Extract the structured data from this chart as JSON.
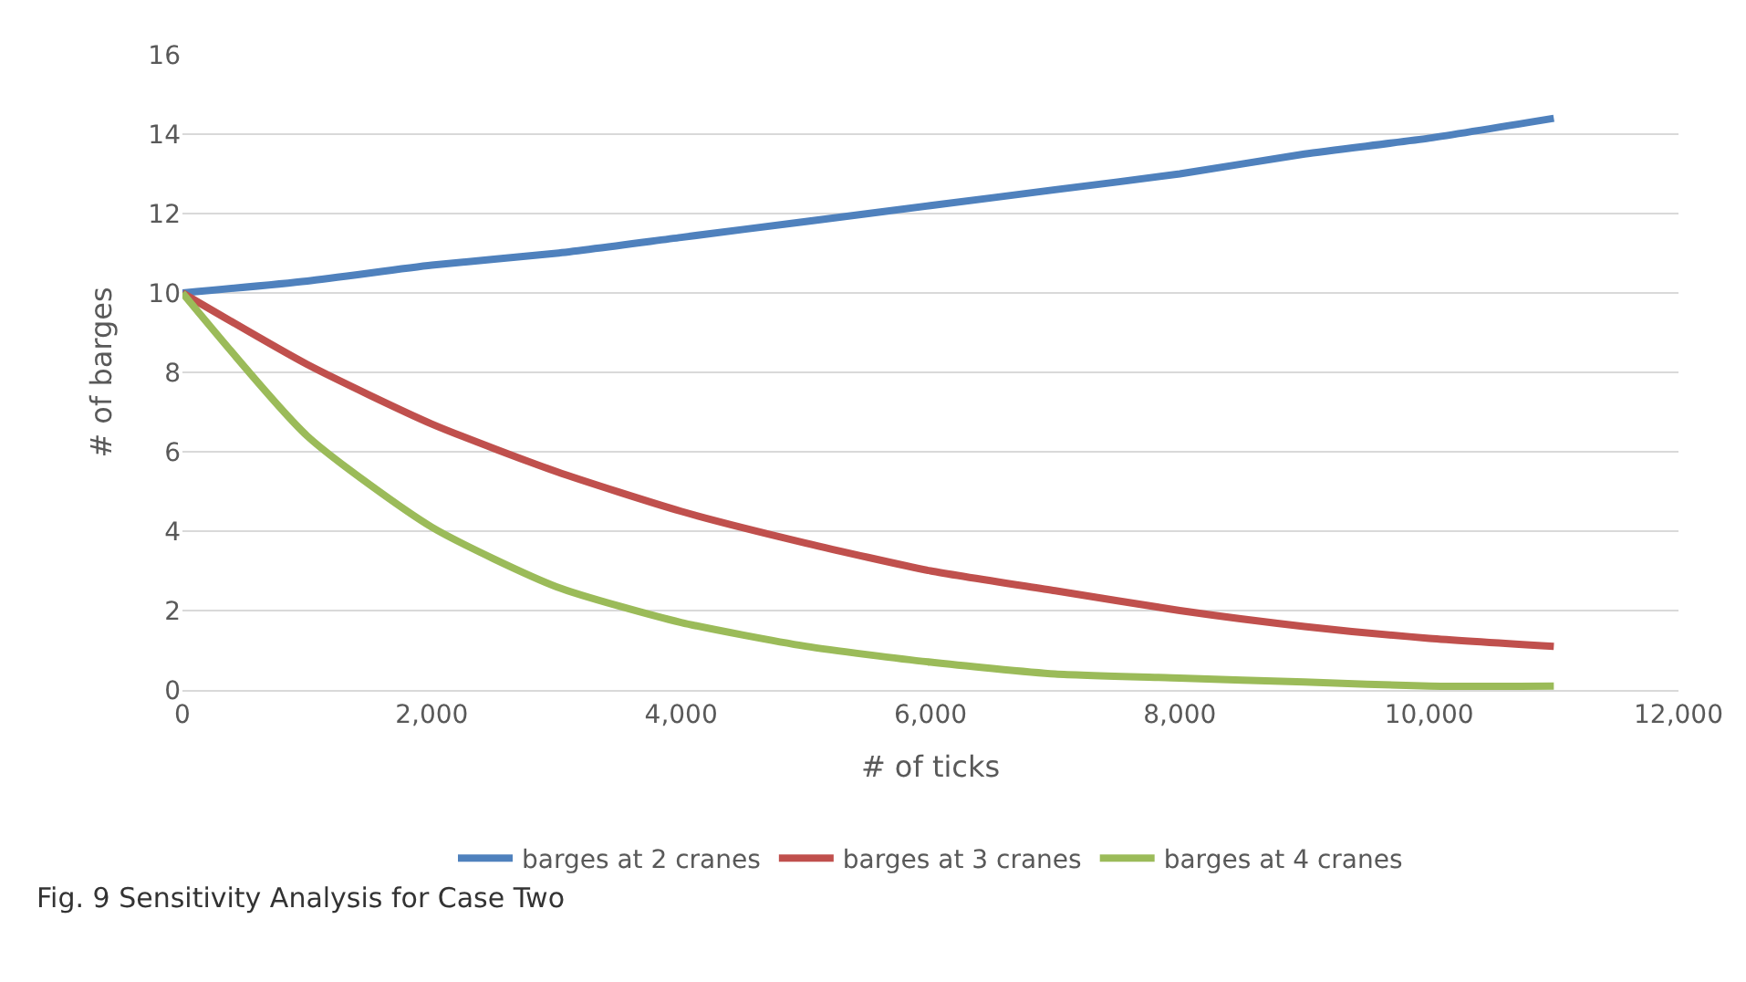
{
  "chart_data": {
    "type": "line",
    "xlabel": "# of ticks",
    "ylabel": "# of barges",
    "x": [
      0,
      1000,
      2000,
      3000,
      4000,
      5000,
      6000,
      7000,
      8000,
      9000,
      10000,
      11000
    ],
    "series": [
      {
        "name": "barges at 2 cranes",
        "color": "#4f81bd",
        "values": [
          10,
          10.3,
          10.7,
          11.0,
          11.4,
          11.8,
          12.2,
          12.6,
          13.0,
          13.5,
          13.9,
          14.4
        ]
      },
      {
        "name": "barges at 3 cranes",
        "color": "#c0504d",
        "values": [
          10,
          8.2,
          6.7,
          5.5,
          4.5,
          3.7,
          3.0,
          2.5,
          2.0,
          1.6,
          1.3,
          1.1
        ]
      },
      {
        "name": "barges at 4 cranes",
        "color": "#9bbb59",
        "values": [
          10,
          6.4,
          4.1,
          2.6,
          1.7,
          1.1,
          0.7,
          0.4,
          0.3,
          0.2,
          0.1,
          0.1
        ]
      }
    ],
    "xlim": [
      0,
      12000
    ],
    "xticks": [
      {
        "value": 0,
        "label": "0"
      },
      {
        "value": 2000,
        "label": "2,000"
      },
      {
        "value": 4000,
        "label": "4,000"
      },
      {
        "value": 6000,
        "label": "6,000"
      },
      {
        "value": 8000,
        "label": "8,000"
      },
      {
        "value": 10000,
        "label": "10,000"
      },
      {
        "value": 12000,
        "label": "12,000"
      }
    ],
    "ylim": [
      0,
      16
    ],
    "yticks": [
      0,
      2,
      4,
      6,
      8,
      10,
      12,
      14,
      16
    ],
    "grid": "y",
    "legend": "bottom",
    "marker": "none",
    "line_style": "solid",
    "annotations": [
      "Fig. 9 Sensitivity Analysis for Case Two"
    ]
  }
}
